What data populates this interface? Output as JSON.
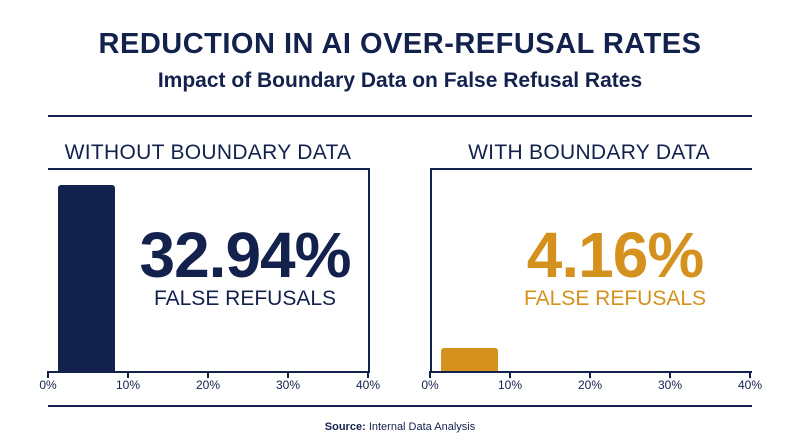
{
  "header": {
    "title": "REDUCTION IN AI OVER-REFUSAL RATES",
    "subtitle": "Impact of Boundary Data on False Refusal Rates"
  },
  "source": {
    "label": "Source:",
    "text": "Internal Data Analysis"
  },
  "colors": {
    "navy": "#13214d",
    "gold": "#d4911d"
  },
  "chart_data": [
    {
      "type": "bar",
      "title": "WITHOUT BOUNDARY DATA",
      "categories": [
        ""
      ],
      "values": [
        32.94
      ],
      "value_label": "32.94%",
      "caption": "FALSE REFUSALS",
      "xlim": [
        0,
        40
      ],
      "ticks": [
        "0%",
        "10%",
        "20%",
        "30%",
        "40%"
      ],
      "color": "#13214d"
    },
    {
      "type": "bar",
      "title": "WITH BOUNDARY DATA",
      "categories": [
        ""
      ],
      "values": [
        4.16
      ],
      "value_label": "4.16%",
      "caption": "FALSE REFUSALS",
      "xlim": [
        0,
        40
      ],
      "ticks": [
        "0%",
        "10%",
        "20%",
        "30%",
        "40%"
      ],
      "color": "#d4911d"
    }
  ]
}
